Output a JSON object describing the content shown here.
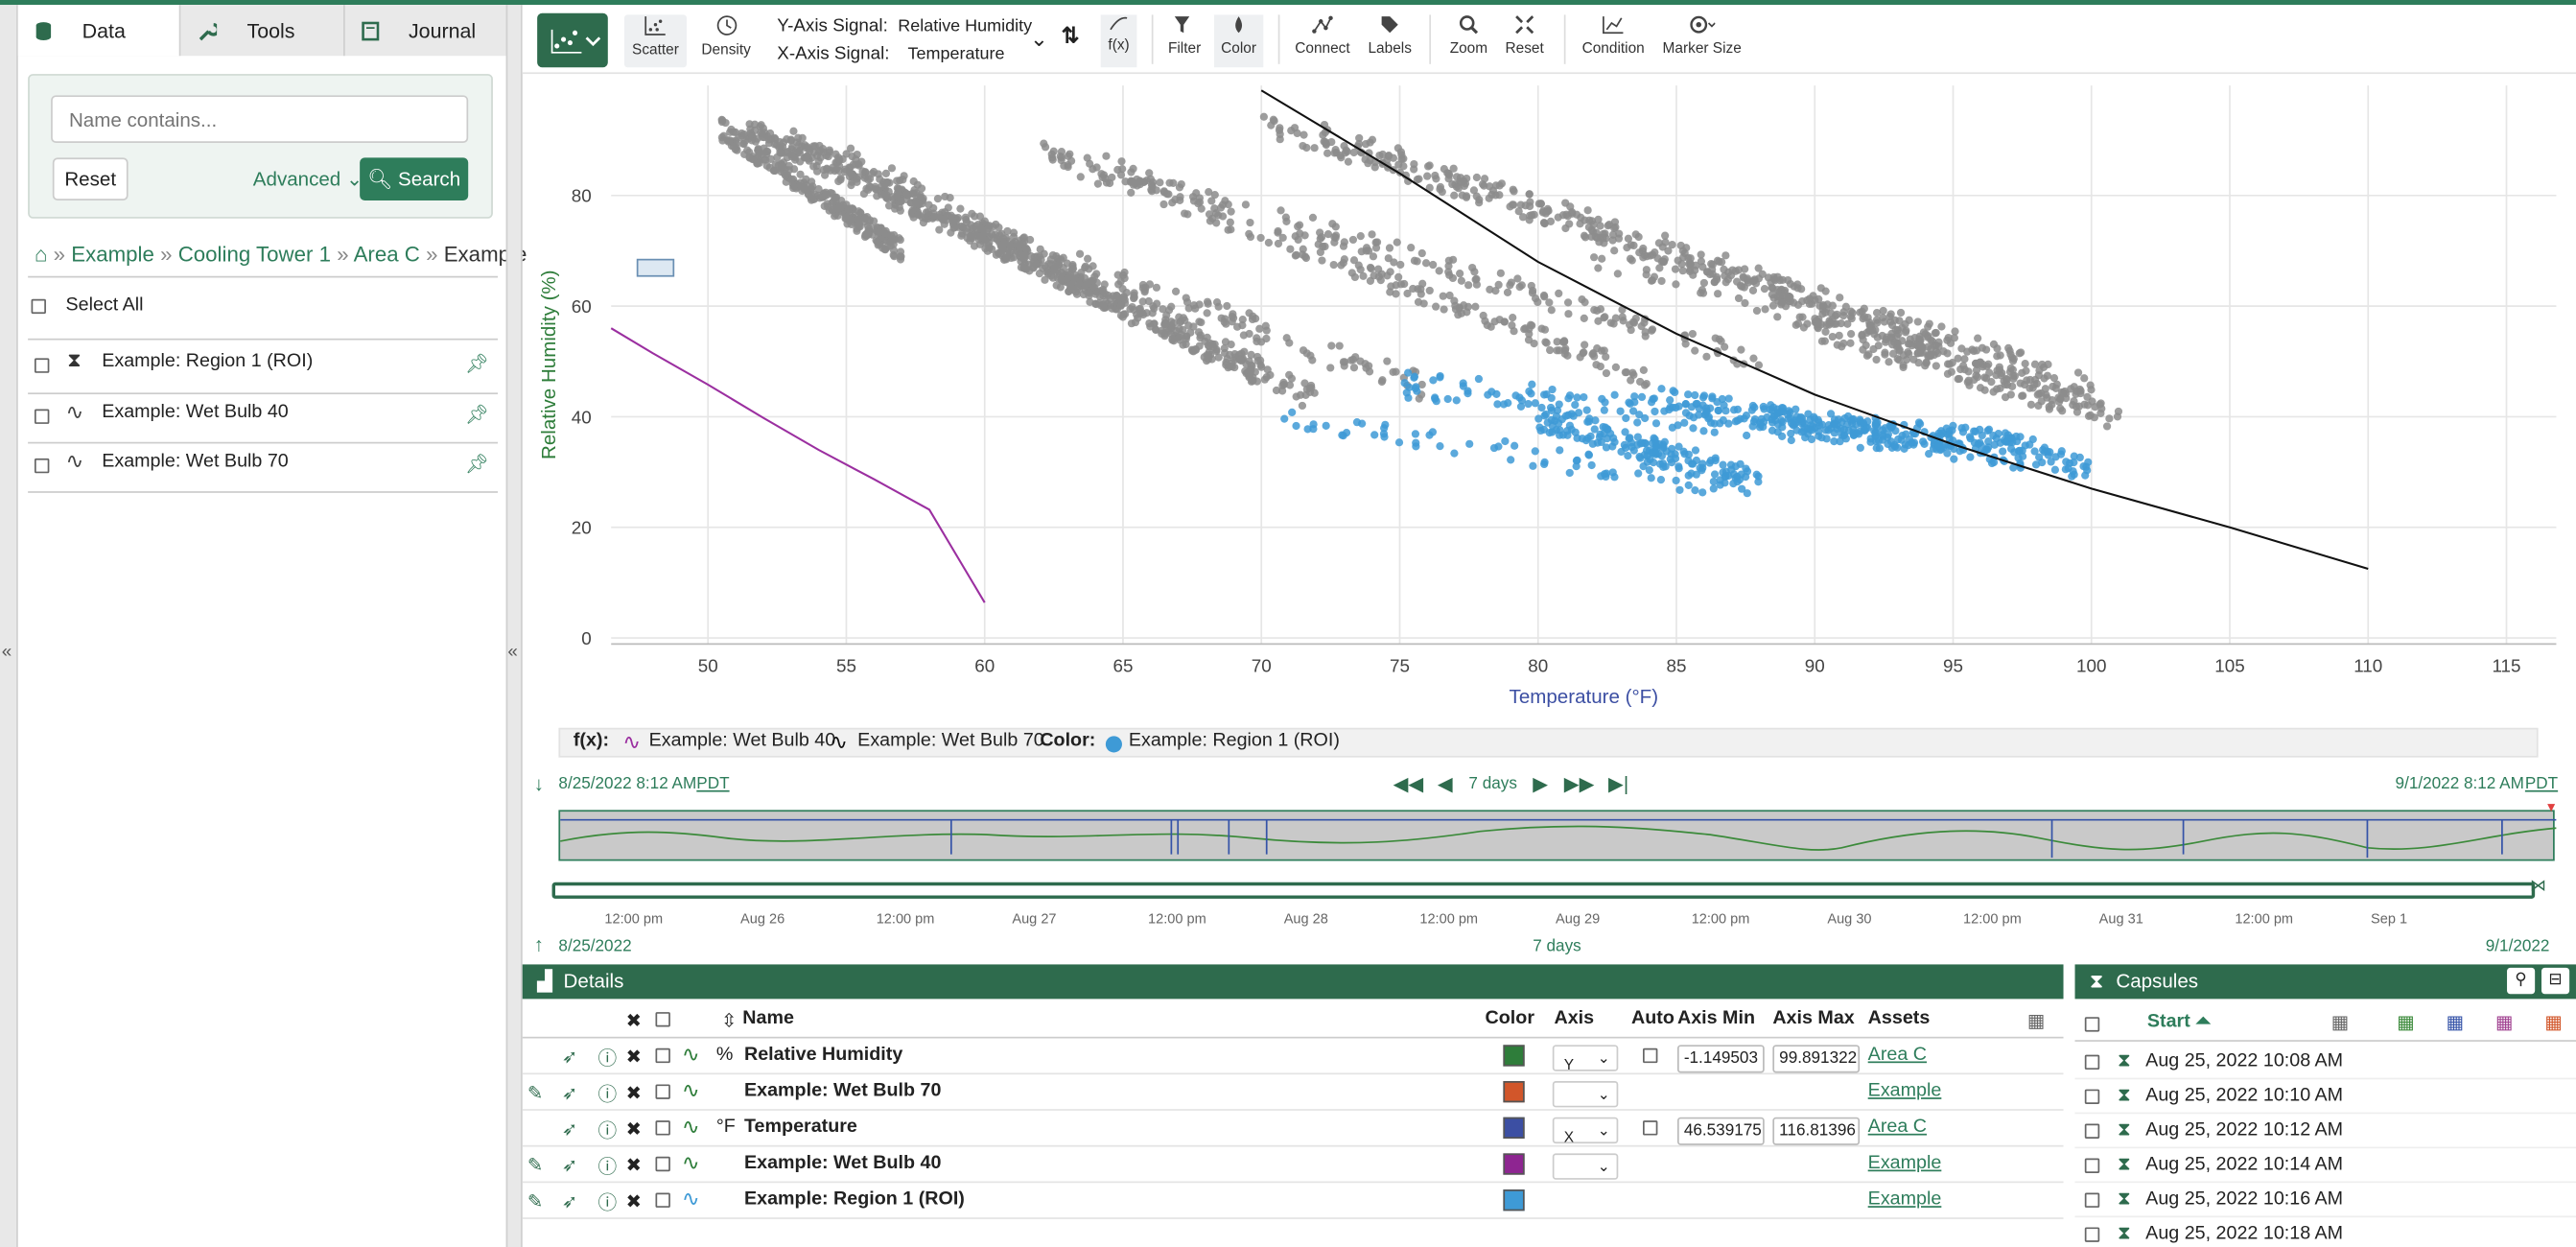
{
  "left_panel": {
    "tabs": [
      {
        "label": "Data",
        "icon": "database-icon"
      },
      {
        "label": "Tools",
        "icon": "wrench-icon"
      },
      {
        "label": "Journal",
        "icon": "book-icon"
      }
    ],
    "search": {
      "placeholder": "Name contains...",
      "reset_label": "Reset",
      "advanced_label": "Advanced",
      "search_label": "Search"
    },
    "breadcrumb": [
      "Example",
      "Cooling Tower 1",
      "Area C",
      "Example"
    ],
    "select_all_label": "Select All",
    "items": [
      {
        "label": "Example: Region 1 (ROI)",
        "icon": "condition-icon"
      },
      {
        "label": "Example: Wet Bulb 40",
        "icon": "signal-icon"
      },
      {
        "label": "Example: Wet Bulb 70",
        "icon": "signal-icon"
      }
    ]
  },
  "toolbar": {
    "scatter": "Scatter",
    "density": "Density",
    "y_label": "Y-Axis Signal:",
    "y_value": "Relative Humidity",
    "x_label": "X-Axis Signal:",
    "x_value": "Temperature",
    "fx": "f(x)",
    "filter": "Filter",
    "color": "Color",
    "connect": "Connect",
    "labels": "Labels",
    "zoom": "Zoom",
    "reset": "Reset",
    "condition": "Condition",
    "marker_size": "Marker Size"
  },
  "chart_data": {
    "type": "scatter",
    "xlabel": "Temperature (°F)",
    "ylabel": "Relative Humidity (%)",
    "xlim": [
      46.5,
      116.8
    ],
    "ylim": [
      -1.1,
      99.9
    ],
    "x_ticks": [
      50,
      55,
      60,
      65,
      70,
      75,
      80,
      85,
      90,
      95,
      100,
      105,
      110,
      115
    ],
    "y_ticks": [
      0,
      20,
      40,
      60,
      80
    ],
    "series": [
      {
        "name": "Example: Wet Bulb 40",
        "kind": "curve",
        "color": "#9b2fa0",
        "x": [
          46.5,
          48,
          50,
          52,
          54,
          56,
          58,
          60
        ],
        "y": [
          56,
          51.5,
          45.8,
          39.8,
          34,
          28.7,
          23.2,
          6.4
        ]
      },
      {
        "name": "Example: Wet Bulb 70",
        "kind": "curve",
        "color": "#111111",
        "x": [
          70,
          75,
          80,
          85,
          90,
          95,
          100,
          105,
          110
        ],
        "y": [
          99,
          84,
          68,
          55,
          44,
          35,
          27,
          20,
          12.5
        ]
      },
      {
        "name": "Example: Region 1 (ROI)",
        "kind": "points",
        "color": "#3e9ad6"
      },
      {
        "name": "Relative Humidity",
        "kind": "points",
        "color": "#8c8c8c"
      }
    ]
  },
  "legend": {
    "fx_label": "f(x):",
    "fx_items": [
      "Example: Wet Bulb 40",
      "Example: Wet Bulb 70"
    ],
    "color_label": "Color:",
    "color_item": "Example: Region 1 (ROI)"
  },
  "time": {
    "start": "8/25/2022 8:12 AM",
    "end": "9/1/2022 8:12 AM",
    "tz": "PDT",
    "duration": "7 days",
    "ticks": [
      "12:00 pm",
      "Aug 26",
      "12:00 pm",
      "Aug 27",
      "12:00 pm",
      "Aug 28",
      "12:00 pm",
      "Aug 29",
      "12:00 pm",
      "Aug 30",
      "12:00 pm",
      "Aug 31",
      "12:00 pm",
      "Sep 1"
    ],
    "range_start": "8/25/2022",
    "range_duration": "7 days",
    "range_end": "9/1/2022"
  },
  "details": {
    "title": "Details",
    "headers": {
      "name": "Name",
      "color": "Color",
      "axis": "Axis",
      "auto": "Auto",
      "min": "Axis Min",
      "max": "Axis Max",
      "assets": "Assets"
    },
    "rows": [
      {
        "unit": "%",
        "name": "Relative Humidity",
        "color": "#2e7d3a",
        "axis": "Y",
        "min": "-1.149503",
        "max": "99.891322",
        "asset": "Area C"
      },
      {
        "unit": "",
        "name": "Example: Wet Bulb 70",
        "color": "#d2562a",
        "axis": "",
        "min": "",
        "max": "",
        "asset": "Example"
      },
      {
        "unit": "°F",
        "name": "Temperature",
        "color": "#3c4fa3",
        "axis": "X",
        "min": "46.539175",
        "max": "116.81396",
        "asset": "Area C"
      },
      {
        "unit": "",
        "name": "Example: Wet Bulb 40",
        "color": "#8e2591",
        "axis": "",
        "min": "",
        "max": "",
        "asset": "Example"
      },
      {
        "unit": "",
        "name": "Example: Region 1 (ROI)",
        "color": "#3e9ad6",
        "axis": "",
        "min": "",
        "max": "",
        "asset": "Example"
      }
    ]
  },
  "capsules": {
    "title": "Capsules",
    "start_header": "Start",
    "rows": [
      "Aug 25, 2022 10:08 AM",
      "Aug 25, 2022 10:10 AM",
      "Aug 25, 2022 10:12 AM",
      "Aug 25, 2022 10:14 AM",
      "Aug 25, 2022 10:16 AM",
      "Aug 25, 2022 10:18 AM"
    ]
  }
}
